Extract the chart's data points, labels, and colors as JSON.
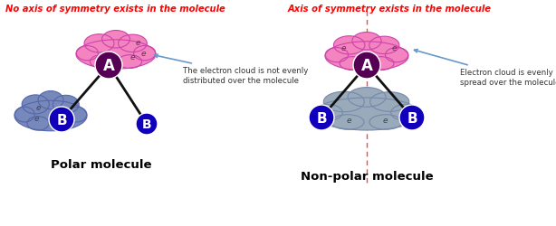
{
  "title_left": "No axis of symmetry exists in the molecule",
  "title_right": "Axis of symmetry exists in the molecule",
  "label_polar": "Polar molecule",
  "label_nonpolar": "Non-polar molecule",
  "annotation_left": "The electron cloud is not evenly\ndistributed over the molecule",
  "annotation_right": "Electron cloud is evenly\nspread over the molecule",
  "title_color": "#ff0000",
  "bg_color": "#ffffff",
  "pink_cloud_color": "#f484c0",
  "blue_cloud_color": "#7788bb",
  "blue_cloud_nonpolar_color": "#99aabb",
  "atom_A_color": "#550055",
  "atom_B_color": "#1100bb",
  "atom_text_color": "#ffffff",
  "bond_color": "#111111",
  "arrow_color": "#6699cc",
  "e_text_color": "#444444",
  "divider_color": "#dddddd",
  "sym_axis_color": "#ff4444",
  "figw": 6.14,
  "figh": 2.51,
  "dpi": 100
}
